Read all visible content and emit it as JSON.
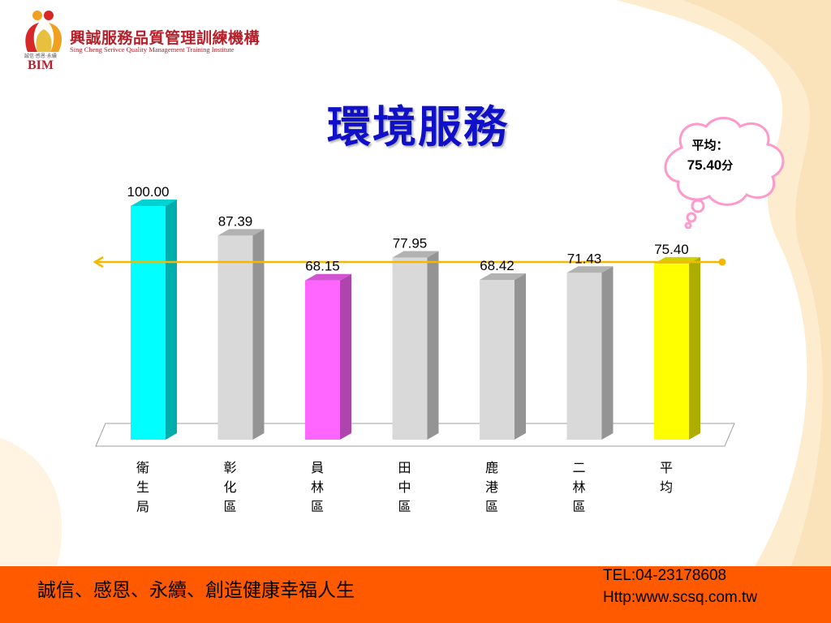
{
  "logo": {
    "name_cn": "興誠服務品質管理訓練機構",
    "name_en": "Sing Cheng Serivce Quality Management Training Institute",
    "tagline": "誠信‧感恩‧永續",
    "abbr": "BIM"
  },
  "title": "環境服務",
  "average_callout": {
    "label": "平均：",
    "value": "75.40",
    "unit": "分"
  },
  "colors": {
    "title": "#1010c8",
    "footer": "#ff5a00",
    "cyan_bar": "#00ffff",
    "magenta_bar": "#ff66ff",
    "yellow_bar": "#ffff00",
    "gray_bar": "#d9d9d9",
    "average_line": "#f5b800",
    "cloud": "#ff99cc"
  },
  "chart_data": {
    "type": "bar",
    "title": "環境服務",
    "categories": [
      "衛生局",
      "彰化區",
      "員林區",
      "田中區",
      "鹿港區",
      "二林區",
      "平均"
    ],
    "values": [
      100.0,
      87.39,
      68.15,
      77.95,
      68.42,
      71.43,
      75.4
    ],
    "value_labels": [
      "100.00",
      "87.39",
      "68.15",
      "77.95",
      "68.42",
      "71.43",
      "75.40"
    ],
    "bar_colors": [
      "#00ffff",
      "#d9d9d9",
      "#ff66ff",
      "#d9d9d9",
      "#d9d9d9",
      "#d9d9d9",
      "#ffff00"
    ],
    "reference_line": 75.4,
    "ylim": [
      0,
      100
    ],
    "grid": false,
    "xlabel": "",
    "ylabel": ""
  },
  "footer": {
    "slogan": "誠信、感恩、永續、創造健康幸福人生",
    "tel": "TEL:04-23178608",
    "url": "Http:www.scsq.com.tw"
  }
}
